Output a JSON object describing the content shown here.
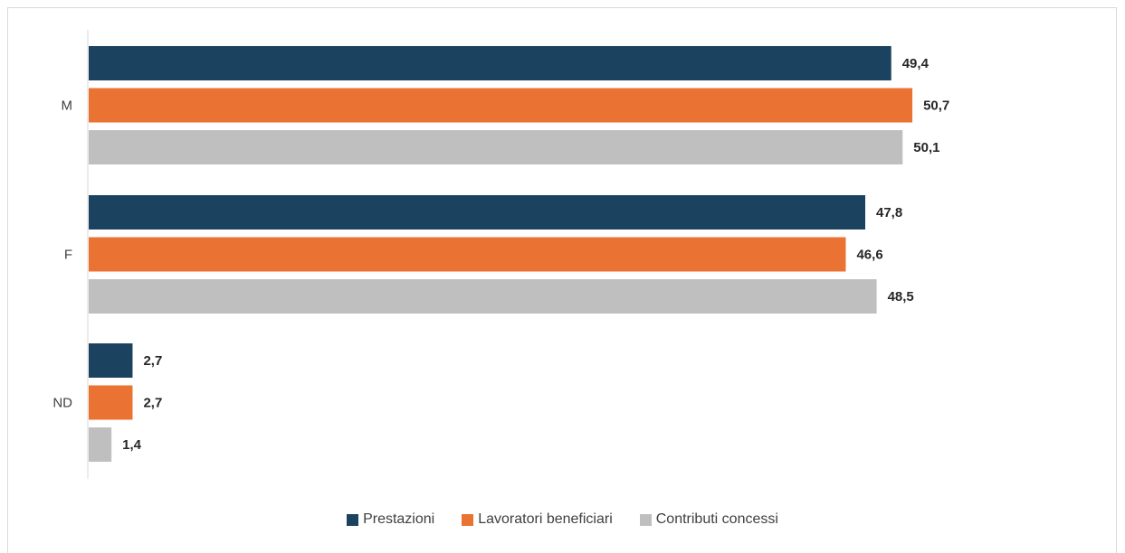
{
  "chart_data": {
    "type": "bar",
    "orientation": "horizontal",
    "categories": [
      "M",
      "F",
      "ND"
    ],
    "series": [
      {
        "name": "Prestazioni",
        "color": "#1b4360",
        "values": [
          49.4,
          47.8,
          2.7
        ],
        "labels": [
          "49,4",
          "47,8",
          "2,7"
        ]
      },
      {
        "name": "Lavoratori beneficiari",
        "color": "#ea7233",
        "values": [
          50.7,
          46.6,
          2.7
        ],
        "labels": [
          "50,7",
          "46,6",
          "2,7"
        ]
      },
      {
        "name": "Contributi concessi",
        "color": "#bfbfbf",
        "values": [
          50.1,
          48.5,
          1.4
        ],
        "labels": [
          "50,1",
          "48,5",
          "1,4"
        ]
      }
    ],
    "xlim": [
      0,
      55
    ],
    "legend_position": "bottom",
    "grid": false
  }
}
